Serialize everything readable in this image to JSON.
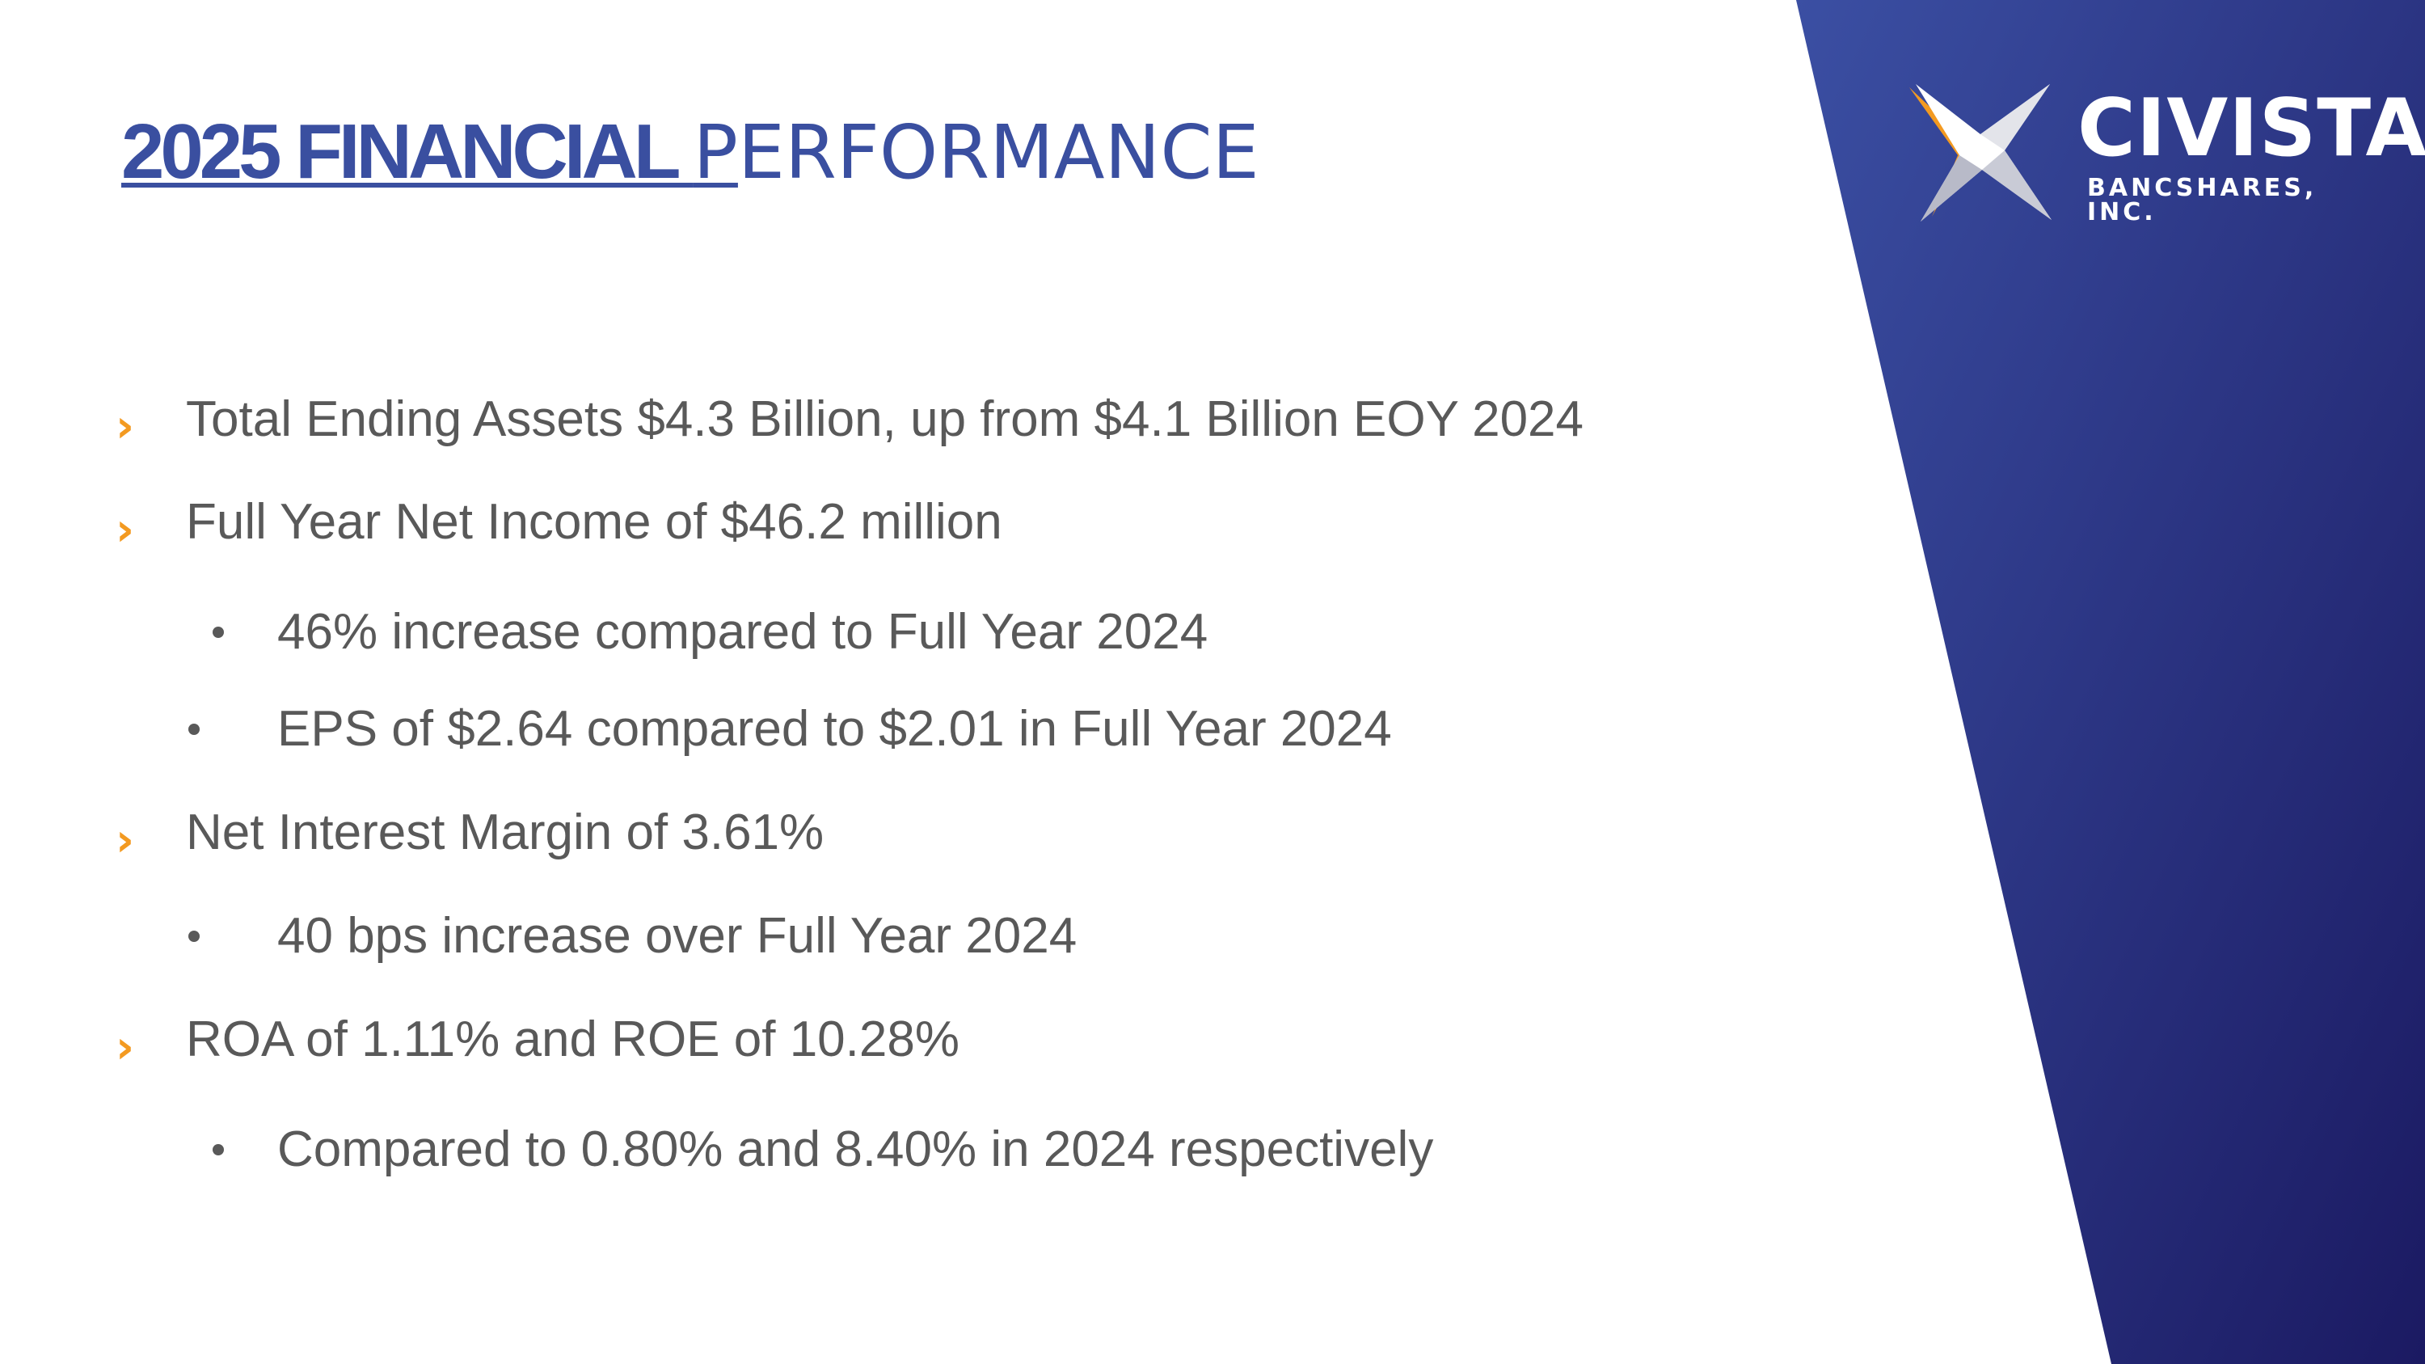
{
  "slide": {
    "title_bold": "2025 FINANCIAL ",
    "title_first_letter": "P",
    "title_rest": "ERFORMANCE",
    "colors": {
      "title": "#3a4fa0",
      "panel_top": "#3b4fa3",
      "panel_bottom": "#1b1a62",
      "bullet_arrow": "#f39a21",
      "body_text": "#595959"
    }
  },
  "logo": {
    "name": "CIVISTA",
    "subtitle": "BANCSHARES, INC.",
    "icon": "civista-star-icon"
  },
  "bullets": [
    {
      "level": 1,
      "text": "Total Ending Assets $4.3 Billion, up from $4.1 Billion EOY 2024"
    },
    {
      "level": 1,
      "text": "Full Year Net Income of $46.2 million"
    },
    {
      "level": 2,
      "text": "46% increase compared to Full Year 2024"
    },
    {
      "level": 2,
      "text": "EPS of $2.64 compared to $2.01 in Full Year 2024"
    },
    {
      "level": 1,
      "text": "Net Interest Margin of 3.61%"
    },
    {
      "level": 2,
      "text": "40 bps increase over Full Year 2024"
    },
    {
      "level": 1,
      "text": "ROA of 1.11% and ROE of 10.28%"
    },
    {
      "level": 2,
      "text": "Compared to 0.80% and 8.40% in 2024 respectively"
    }
  ],
  "icons": {
    "level1": "chevron-right-icon",
    "level2": "bullet-dot-icon"
  }
}
